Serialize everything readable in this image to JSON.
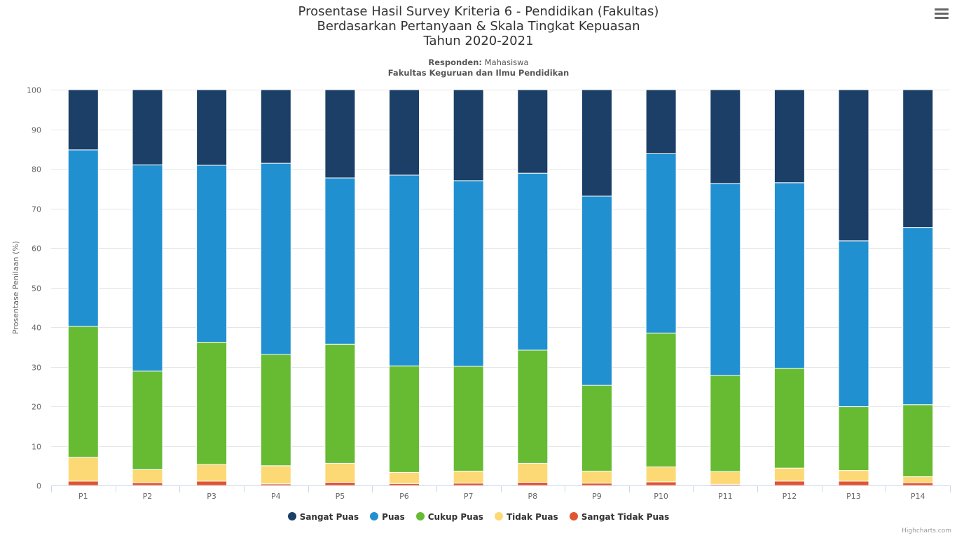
{
  "chart_data": {
    "type": "bar",
    "stacked": true,
    "title": [
      "Prosentase Hasil Survey Kriteria 6 - Pendidikan (Fakultas)",
      "Berdasarkan Pertanyaan & Skala Tingkat Kepuasan",
      "Tahun 2020-2021"
    ],
    "subtitle": {
      "respondent_label": "Responden:",
      "respondent_value": "Mahasiswa",
      "faculty": "Fakultas Keguruan dan Ilmu Pendidikan"
    },
    "ylabel": "Prosentase Penilaan (%)",
    "xlabel": "",
    "ylim": [
      0,
      100
    ],
    "yticks": [
      "0",
      "10",
      "20",
      "30",
      "40",
      "50",
      "60",
      "70",
      "80",
      "90",
      "100"
    ],
    "grid": true,
    "legend_position": "bottom-center",
    "categories": [
      "P1",
      "P2",
      "P3",
      "P4",
      "P5",
      "P6",
      "P7",
      "P8",
      "P9",
      "P10",
      "P11",
      "P12",
      "P13",
      "P14"
    ],
    "series": [
      {
        "name": "Sangat Puas",
        "color": "#1b3f66",
        "values": [
          15.2,
          19.0,
          19.1,
          18.6,
          22.3,
          21.6,
          23.0,
          21.1,
          26.9,
          16.2,
          23.7,
          23.5,
          38.2,
          34.8
        ]
      },
      {
        "name": "Puas",
        "color": "#2190d1",
        "values": [
          44.6,
          52.1,
          44.7,
          48.3,
          42.0,
          48.2,
          46.9,
          44.7,
          47.8,
          45.3,
          48.5,
          46.9,
          41.9,
          44.8
        ]
      },
      {
        "name": "Cukup Puas",
        "color": "#66bb33",
        "values": [
          33.1,
          24.9,
          30.9,
          28.1,
          30.1,
          26.9,
          26.5,
          28.6,
          21.7,
          33.8,
          24.3,
          25.2,
          16.1,
          18.2
        ]
      },
      {
        "name": "Tidak Puas",
        "color": "#fdd975",
        "values": [
          6.0,
          3.3,
          4.2,
          4.6,
          4.8,
          2.8,
          3.0,
          4.8,
          3.0,
          3.8,
          3.2,
          3.3,
          2.7,
          1.5
        ]
      },
      {
        "name": "Sangat Tidak Puas",
        "color": "#e2542f",
        "values": [
          1.1,
          0.7,
          1.1,
          0.4,
          0.8,
          0.5,
          0.6,
          0.8,
          0.6,
          0.9,
          0.3,
          1.1,
          1.1,
          0.7
        ]
      }
    ]
  },
  "credits": "Highcharts.com",
  "menu_icon": "hamburger-menu-icon"
}
